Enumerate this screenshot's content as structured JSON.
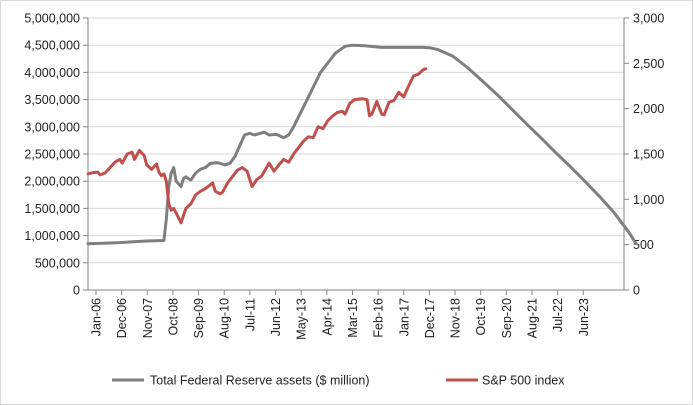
{
  "chart_data": {
    "type": "line",
    "title": "",
    "xlabel": "",
    "ylabel": "",
    "y2label": "",
    "grid": "horizontal",
    "legend_position": "bottom",
    "x_ticks": [
      "Jan-06",
      "Dec-06",
      "Nov-07",
      "Oct-08",
      "Sep-09",
      "Aug-10",
      "Jul-11",
      "Jun-12",
      "May-13",
      "Apr-14",
      "Mar-15",
      "Feb-16",
      "Jan-17",
      "Dec-17",
      "Nov-18",
      "Oct-19",
      "Sep-20",
      "Aug-21",
      "Jul-22",
      "Jun-23"
    ],
    "x_range": [
      "2006-01",
      "2024-04"
    ],
    "y_left": {
      "range": [
        0,
        5000000
      ],
      "ticks": [
        "0",
        "500,000",
        "1,000,000",
        "1,500,000",
        "2,000,000",
        "2,500,000",
        "3,000,000",
        "3,500,000",
        "4,000,000",
        "4,500,000",
        "5,000,000"
      ]
    },
    "y_right": {
      "range": [
        0,
        3000
      ],
      "ticks": [
        "0",
        "500",
        "1,000",
        "1,500",
        "2,000",
        "2,500",
        "3,000"
      ]
    },
    "series": [
      {
        "name": "Total Federal Reserve assets ($ million)",
        "axis": "left",
        "color": "#7f7f7f",
        "points": [
          [
            "2006-01",
            850000
          ],
          [
            "2007-01",
            870000
          ],
          [
            "2008-01",
            900000
          ],
          [
            "2008-08",
            910000
          ],
          [
            "2008-09",
            1300000
          ],
          [
            "2008-10",
            1900000
          ],
          [
            "2008-11",
            2150000
          ],
          [
            "2008-12",
            2250000
          ],
          [
            "2009-01",
            2000000
          ],
          [
            "2009-02",
            1950000
          ],
          [
            "2009-03",
            1900000
          ],
          [
            "2009-04",
            2050000
          ],
          [
            "2009-05",
            2080000
          ],
          [
            "2009-06",
            2050000
          ],
          [
            "2009-07",
            2020000
          ],
          [
            "2009-09",
            2150000
          ],
          [
            "2009-11",
            2220000
          ],
          [
            "2010-01",
            2250000
          ],
          [
            "2010-03",
            2330000
          ],
          [
            "2010-06",
            2340000
          ],
          [
            "2010-09",
            2300000
          ],
          [
            "2010-11",
            2330000
          ],
          [
            "2011-01",
            2450000
          ],
          [
            "2011-03",
            2650000
          ],
          [
            "2011-05",
            2850000
          ],
          [
            "2011-07",
            2880000
          ],
          [
            "2011-09",
            2850000
          ],
          [
            "2012-01",
            2900000
          ],
          [
            "2012-03",
            2850000
          ],
          [
            "2012-06",
            2860000
          ],
          [
            "2012-09",
            2800000
          ],
          [
            "2012-11",
            2850000
          ],
          [
            "2013-01",
            3000000
          ],
          [
            "2013-06",
            3450000
          ],
          [
            "2013-12",
            4000000
          ],
          [
            "2014-06",
            4350000
          ],
          [
            "2014-10",
            4480000
          ],
          [
            "2015-01",
            4500000
          ],
          [
            "2015-06",
            4490000
          ],
          [
            "2016-01",
            4460000
          ],
          [
            "2016-06",
            4460000
          ],
          [
            "2017-01",
            4460000
          ],
          [
            "2017-06",
            4460000
          ],
          [
            "2017-09",
            4450000
          ],
          [
            "2017-12",
            4420000
          ],
          [
            "2018-06",
            4300000
          ],
          [
            "2018-12",
            4090000
          ],
          [
            "2019-06",
            3850000
          ],
          [
            "2019-12",
            3600000
          ],
          [
            "2020-06",
            3330000
          ],
          [
            "2020-12",
            3060000
          ],
          [
            "2021-06",
            2800000
          ],
          [
            "2021-12",
            2530000
          ],
          [
            "2022-06",
            2270000
          ],
          [
            "2022-12",
            2000000
          ],
          [
            "2023-06",
            1720000
          ],
          [
            "2023-12",
            1420000
          ],
          [
            "2024-06",
            1060000
          ],
          [
            "2024-09",
            850000
          ]
        ]
      },
      {
        "name": "S&P 500 index",
        "axis": "right",
        "color": "#c0504d",
        "points": [
          [
            "2006-01",
            1280
          ],
          [
            "2006-03",
            1295
          ],
          [
            "2006-05",
            1300
          ],
          [
            "2006-06",
            1270
          ],
          [
            "2006-08",
            1290
          ],
          [
            "2006-10",
            1350
          ],
          [
            "2006-12",
            1410
          ],
          [
            "2007-02",
            1440
          ],
          [
            "2007-03",
            1400
          ],
          [
            "2007-05",
            1500
          ],
          [
            "2007-07",
            1520
          ],
          [
            "2007-08",
            1440
          ],
          [
            "2007-10",
            1540
          ],
          [
            "2007-12",
            1480
          ],
          [
            "2008-01",
            1380
          ],
          [
            "2008-03",
            1330
          ],
          [
            "2008-05",
            1390
          ],
          [
            "2008-06",
            1300
          ],
          [
            "2008-07",
            1260
          ],
          [
            "2008-08",
            1280
          ],
          [
            "2008-09",
            1200
          ],
          [
            "2008-10",
            950
          ],
          [
            "2008-11",
            880
          ],
          [
            "2008-12",
            900
          ],
          [
            "2009-01",
            850
          ],
          [
            "2009-03",
            740
          ],
          [
            "2009-05",
            900
          ],
          [
            "2009-07",
            950
          ],
          [
            "2009-09",
            1050
          ],
          [
            "2009-11",
            1090
          ],
          [
            "2010-01",
            1120
          ],
          [
            "2010-04",
            1180
          ],
          [
            "2010-05",
            1090
          ],
          [
            "2010-07",
            1060
          ],
          [
            "2010-08",
            1080
          ],
          [
            "2010-10",
            1180
          ],
          [
            "2010-12",
            1250
          ],
          [
            "2011-02",
            1320
          ],
          [
            "2011-04",
            1350
          ],
          [
            "2011-06",
            1310
          ],
          [
            "2011-08",
            1140
          ],
          [
            "2011-10",
            1220
          ],
          [
            "2011-12",
            1260
          ],
          [
            "2012-03",
            1400
          ],
          [
            "2012-05",
            1310
          ],
          [
            "2012-07",
            1380
          ],
          [
            "2012-09",
            1440
          ],
          [
            "2012-11",
            1410
          ],
          [
            "2013-01",
            1500
          ],
          [
            "2013-03",
            1570
          ],
          [
            "2013-05",
            1640
          ],
          [
            "2013-07",
            1690
          ],
          [
            "2013-09",
            1680
          ],
          [
            "2013-11",
            1800
          ],
          [
            "2014-01",
            1780
          ],
          [
            "2014-03",
            1870
          ],
          [
            "2014-05",
            1920
          ],
          [
            "2014-07",
            1960
          ],
          [
            "2014-09",
            1970
          ],
          [
            "2014-10",
            1940
          ],
          [
            "2014-12",
            2060
          ],
          [
            "2015-02",
            2100
          ],
          [
            "2015-05",
            2110
          ],
          [
            "2015-07",
            2100
          ],
          [
            "2015-08",
            1920
          ],
          [
            "2015-09",
            1940
          ],
          [
            "2015-11",
            2080
          ],
          [
            "2016-01",
            1940
          ],
          [
            "2016-02",
            1930
          ],
          [
            "2016-04",
            2070
          ],
          [
            "2016-06",
            2090
          ],
          [
            "2016-08",
            2180
          ],
          [
            "2016-10",
            2130
          ],
          [
            "2016-12",
            2250
          ],
          [
            "2017-02",
            2360
          ],
          [
            "2017-04",
            2380
          ],
          [
            "2017-06",
            2430
          ],
          [
            "2017-07",
            2440
          ]
        ]
      }
    ]
  }
}
